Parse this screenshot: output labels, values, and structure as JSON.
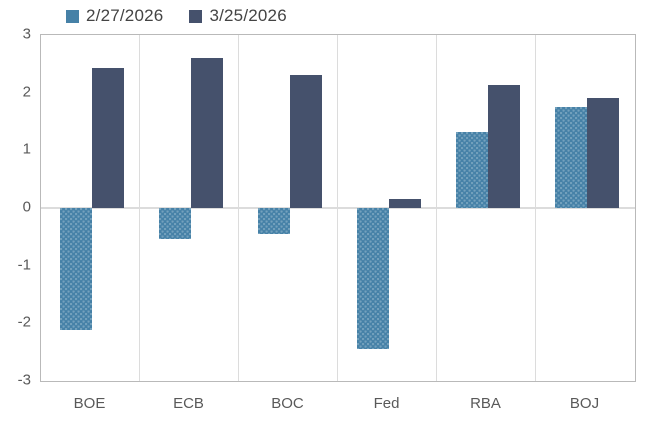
{
  "chart_data": {
    "type": "bar",
    "categories": [
      "BOE",
      "ECB",
      "BOC",
      "Fed",
      "RBA",
      "BOJ"
    ],
    "series": [
      {
        "name": "2/27/2026",
        "color": "#4681a7",
        "values": [
          -2.12,
          -0.53,
          -0.45,
          -2.45,
          1.32,
          1.75
        ]
      },
      {
        "name": "3/25/2026",
        "color": "#45516c",
        "values": [
          2.42,
          2.6,
          2.31,
          0.16,
          2.14,
          1.91
        ]
      }
    ],
    "title": "",
    "xlabel": "",
    "ylabel": "",
    "ylim": [
      -3,
      3
    ],
    "yticks": [
      3,
      2,
      1,
      0,
      -1,
      -2,
      -3
    ],
    "legend_position": "top-left",
    "grid": "vertical-category-separators",
    "zero_line": true
  },
  "colors": {
    "series_light": "#4681a7",
    "series_dark": "#45516c",
    "plot_border": "#b9b9b9",
    "gridline": "#dcdcdc",
    "axis_text": "#595959",
    "legend_text": "#444444",
    "background": "#ffffff"
  }
}
